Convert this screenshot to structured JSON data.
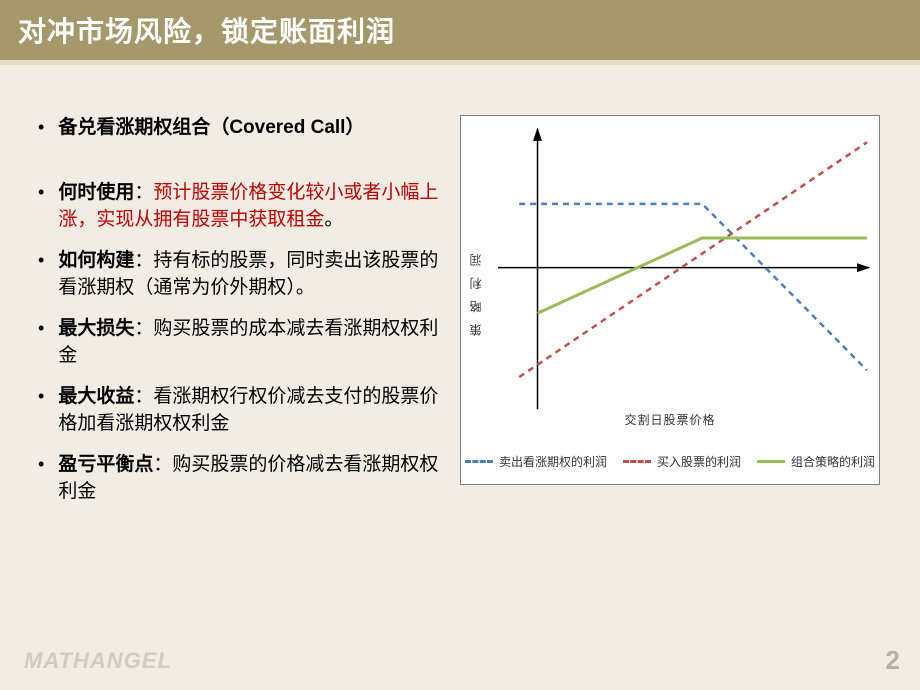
{
  "title": "对冲市场风险，锁定账面利润",
  "bullets": [
    {
      "label": "备兑看涨期权组合（Covered Call）",
      "label_bold": true,
      "rest": "",
      "red": "",
      "gap_after": true
    },
    {
      "label": "何时使用",
      "label_bold": true,
      "rest": "：",
      "red": "预计股票价格变化较小或者小幅上涨，实现从拥有股票中获取租金",
      "tail": "。"
    },
    {
      "label": "如何构建",
      "label_bold": true,
      "rest": "：持有标的股票，同时卖出该股票的看涨期权（通常为价外期权）。"
    },
    {
      "label": "最大损失",
      "label_bold": true,
      "rest": "：购买股票的成本减去看涨期权权利金"
    },
    {
      "label": "最大收益",
      "label_bold": true,
      "rest": "：看涨期权行权价减去支付的股票价格加看涨期权权利金"
    },
    {
      "label": "盈亏平衡点",
      "label_bold": true,
      "rest": "：购买股票的价格减去看涨期权权利金"
    }
  ],
  "chart": {
    "type": "line",
    "background_color": "#ffffff",
    "border_color": "#7f7f7f",
    "axis_color": "#000000",
    "y_label": "策 略 利 润",
    "x_label": "交割日股票价格",
    "x_range": [
      0,
      100
    ],
    "y_range": [
      -60,
      60
    ],
    "x_axis_y": 0,
    "y_axis_x": 10,
    "strike": 55,
    "series": [
      {
        "name": "卖出看涨期权的利润",
        "color": "#4a7fc1",
        "dash": "6,5",
        "width": 2.5,
        "points": [
          [
            5,
            28
          ],
          [
            55,
            28
          ],
          [
            100,
            -45
          ]
        ]
      },
      {
        "name": "买入股票的利润",
        "color": "#c0504d",
        "dash": "6,5",
        "width": 2.5,
        "points": [
          [
            5,
            -48
          ],
          [
            100,
            55
          ]
        ]
      },
      {
        "name": "组合策略的利润",
        "color": "#9bbb59",
        "dash": "",
        "width": 3,
        "points": [
          [
            10,
            -20
          ],
          [
            55,
            13
          ],
          [
            100,
            13
          ]
        ]
      }
    ],
    "legend_items": [
      {
        "label": "卖出看涨期权的利润",
        "color": "#4a7fc1",
        "dash": "dashed"
      },
      {
        "label": "买入股票的利润",
        "color": "#c0504d",
        "dash": "dashed"
      },
      {
        "label": "组合策略的利润",
        "color": "#9bbb59",
        "dash": "solid"
      }
    ]
  },
  "watermark": "MATHANGEL",
  "page_number": "2",
  "colors": {
    "page_bg": "#f1ede4",
    "title_bg": "#a5986b",
    "title_border": "#e5ddc6",
    "title_text": "#ffffff",
    "text": "#000000",
    "red_text": "#c00000",
    "watermark": "#d0ccc0",
    "pagenum": "#b4b0a2"
  }
}
